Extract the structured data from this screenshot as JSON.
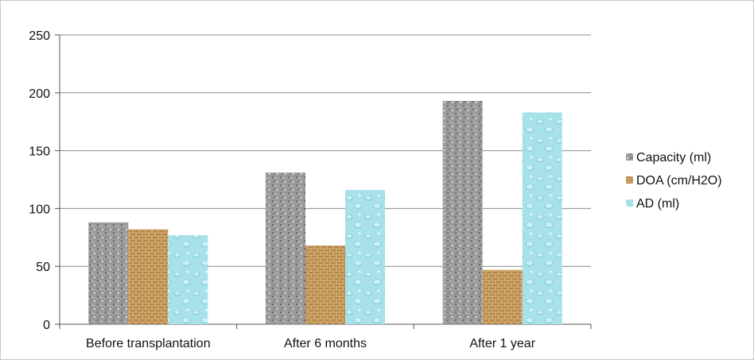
{
  "chart_data": {
    "type": "bar",
    "categories": [
      "Before transplantation",
      "After 6 months",
      "After 1 year"
    ],
    "series": [
      {
        "name": "Capacity (ml)",
        "values": [
          88,
          131,
          193
        ],
        "color": "#9a9a9a",
        "texture": "gray-speckle"
      },
      {
        "name": "DOA (cm/H2O)",
        "values": [
          82,
          68,
          47
        ],
        "color": "#c9a061",
        "texture": "burlap-weave"
      },
      {
        "name": "AD (ml)",
        "values": [
          77,
          116,
          183
        ],
        "color": "#a6e0ea",
        "texture": "water-droplets"
      }
    ],
    "ylim": [
      0,
      250
    ],
    "yticks": [
      0,
      50,
      100,
      150,
      200,
      250
    ],
    "grid": true,
    "legend": "right",
    "xlabel": "",
    "ylabel": "",
    "title": ""
  }
}
